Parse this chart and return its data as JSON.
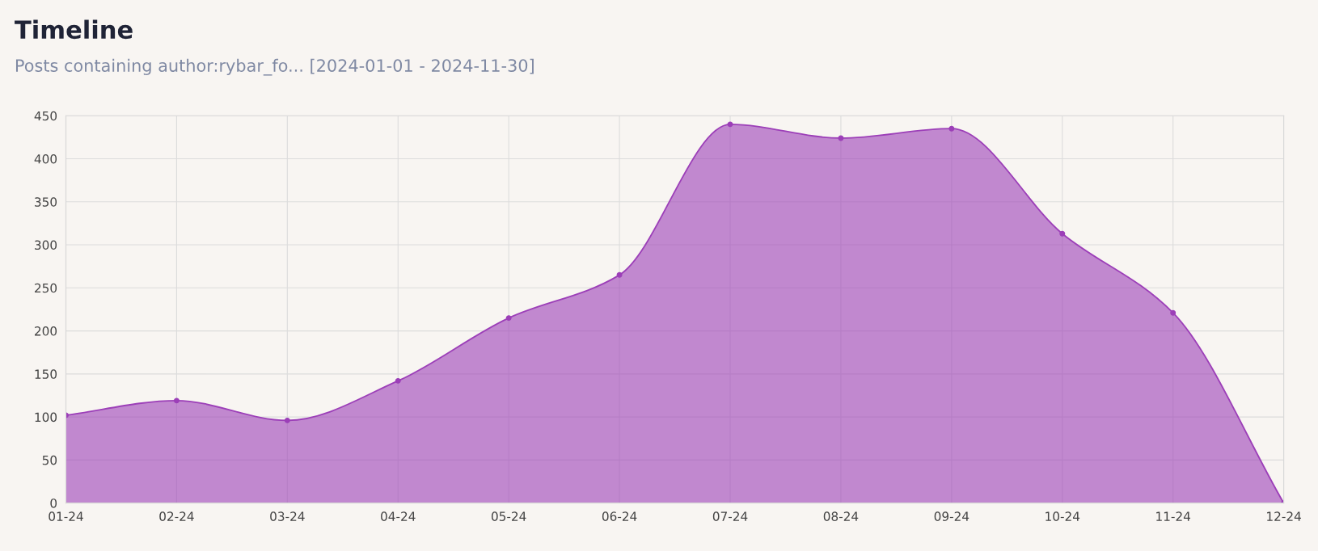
{
  "chart_data": {
    "type": "area",
    "title": "Timeline",
    "subtitle": "Posts containing author:rybar_fo... [2024-01-01 - 2024-11-30]",
    "categories": [
      "01-24",
      "02-24",
      "03-24",
      "04-24",
      "05-24",
      "06-24",
      "07-24",
      "08-24",
      "09-24",
      "10-24",
      "11-24",
      "12-24"
    ],
    "series": [
      {
        "color": "#9c3fb8",
        "values": [
          102,
          119,
          96,
          142,
          215,
          265,
          440,
          424,
          435,
          313,
          221,
          0
        ]
      }
    ],
    "ylim": [
      0,
      450
    ],
    "yticks": [
      0,
      50,
      100,
      150,
      200,
      250,
      300,
      350,
      400,
      450
    ],
    "grid": true,
    "marker": "circle",
    "line_style": "solid"
  }
}
